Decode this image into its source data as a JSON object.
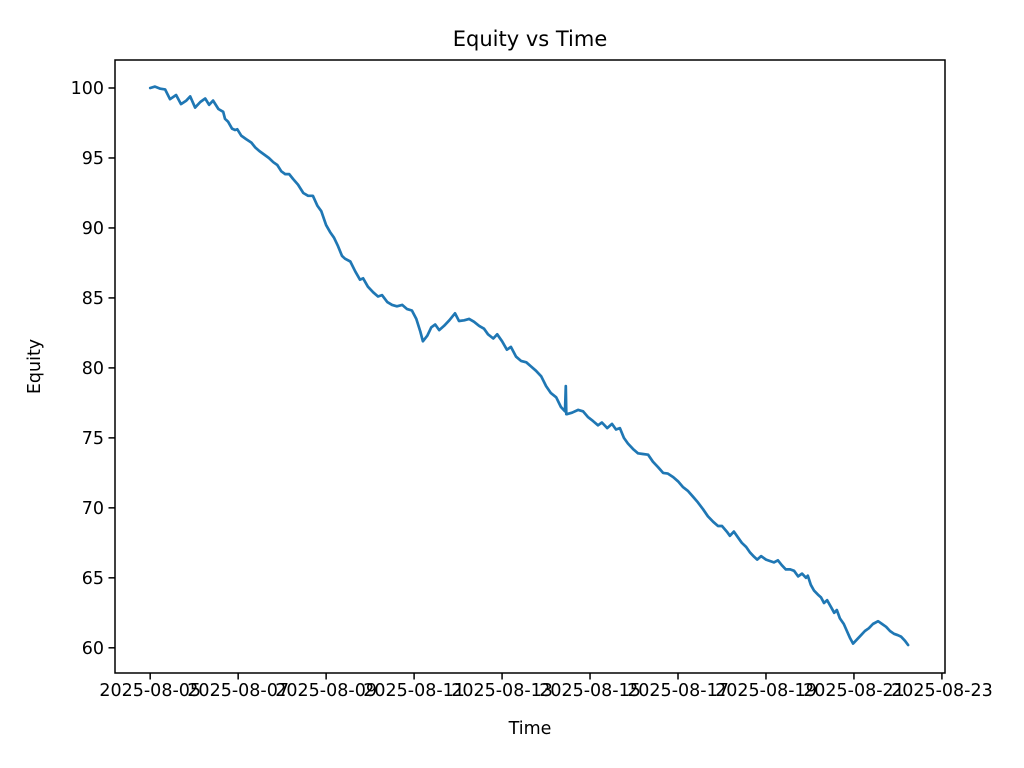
{
  "figure": {
    "background": "#ffffff"
  },
  "chart_data": {
    "type": "line",
    "title": "Equity vs Time",
    "xlabel": "Time",
    "ylabel": "Equity",
    "line_color": "#1f77b4",
    "axis_color": "#000000",
    "grid": false,
    "legend": null,
    "x_origin_date": "2025-08-05",
    "xlim_days": [
      -0.8,
      18.07
    ],
    "ylim": [
      58.2,
      102.0
    ],
    "x_ticks": [
      {
        "day": 0,
        "label": "2025-08-05"
      },
      {
        "day": 2,
        "label": "2025-08-07"
      },
      {
        "day": 4,
        "label": "2025-08-09"
      },
      {
        "day": 6,
        "label": "2025-08-11"
      },
      {
        "day": 8,
        "label": "2025-08-13"
      },
      {
        "day": 10,
        "label": "2025-08-15"
      },
      {
        "day": 12,
        "label": "2025-08-17"
      },
      {
        "day": 14,
        "label": "2025-08-19"
      },
      {
        "day": 16,
        "label": "2025-08-21"
      },
      {
        "day": 18,
        "label": "2025-08-23"
      }
    ],
    "y_ticks": [
      60,
      65,
      70,
      75,
      80,
      85,
      90,
      95,
      100
    ],
    "series": [
      {
        "name": "equity",
        "points": [
          [
            0.0,
            100.0
          ],
          [
            0.11,
            100.1
          ],
          [
            0.23,
            99.95
          ],
          [
            0.34,
            99.9
          ],
          [
            0.45,
            99.2
          ],
          [
            0.59,
            99.5
          ],
          [
            0.7,
            98.85
          ],
          [
            0.82,
            99.1
          ],
          [
            0.91,
            99.4
          ],
          [
            1.02,
            98.6
          ],
          [
            1.14,
            99.0
          ],
          [
            1.25,
            99.25
          ],
          [
            1.34,
            98.8
          ],
          [
            1.43,
            99.1
          ],
          [
            1.55,
            98.5
          ],
          [
            1.66,
            98.3
          ],
          [
            1.7,
            97.8
          ],
          [
            1.77,
            97.6
          ],
          [
            1.86,
            97.1
          ],
          [
            1.93,
            97.0
          ],
          [
            1.98,
            97.05
          ],
          [
            2.07,
            96.6
          ],
          [
            2.18,
            96.35
          ],
          [
            2.3,
            96.1
          ],
          [
            2.39,
            95.75
          ],
          [
            2.48,
            95.5
          ],
          [
            2.59,
            95.25
          ],
          [
            2.7,
            95.0
          ],
          [
            2.8,
            94.7
          ],
          [
            2.89,
            94.5
          ],
          [
            2.98,
            94.05
          ],
          [
            3.07,
            93.85
          ],
          [
            3.16,
            93.85
          ],
          [
            3.25,
            93.5
          ],
          [
            3.36,
            93.1
          ],
          [
            3.48,
            92.5
          ],
          [
            3.59,
            92.3
          ],
          [
            3.7,
            92.3
          ],
          [
            3.8,
            91.6
          ],
          [
            3.89,
            91.2
          ],
          [
            4.0,
            90.2
          ],
          [
            4.09,
            89.7
          ],
          [
            4.18,
            89.3
          ],
          [
            4.27,
            88.7
          ],
          [
            4.36,
            88.0
          ],
          [
            4.43,
            87.8
          ],
          [
            4.55,
            87.6
          ],
          [
            4.66,
            86.9
          ],
          [
            4.77,
            86.3
          ],
          [
            4.84,
            86.4
          ],
          [
            4.95,
            85.8
          ],
          [
            5.07,
            85.4
          ],
          [
            5.18,
            85.1
          ],
          [
            5.27,
            85.2
          ],
          [
            5.39,
            84.7
          ],
          [
            5.5,
            84.5
          ],
          [
            5.61,
            84.4
          ],
          [
            5.73,
            84.5
          ],
          [
            5.84,
            84.2
          ],
          [
            5.95,
            84.1
          ],
          [
            6.05,
            83.5
          ],
          [
            6.14,
            82.6
          ],
          [
            6.2,
            81.9
          ],
          [
            6.3,
            82.3
          ],
          [
            6.39,
            82.9
          ],
          [
            6.48,
            83.1
          ],
          [
            6.57,
            82.7
          ],
          [
            6.68,
            83.0
          ],
          [
            6.8,
            83.4
          ],
          [
            6.93,
            83.9
          ],
          [
            7.02,
            83.35
          ],
          [
            7.14,
            83.4
          ],
          [
            7.25,
            83.5
          ],
          [
            7.36,
            83.3
          ],
          [
            7.48,
            83.0
          ],
          [
            7.59,
            82.8
          ],
          [
            7.68,
            82.4
          ],
          [
            7.8,
            82.1
          ],
          [
            7.89,
            82.4
          ],
          [
            8.0,
            81.9
          ],
          [
            8.11,
            81.3
          ],
          [
            8.2,
            81.5
          ],
          [
            8.32,
            80.8
          ],
          [
            8.43,
            80.5
          ],
          [
            8.55,
            80.4
          ],
          [
            8.66,
            80.1
          ],
          [
            8.77,
            79.8
          ],
          [
            8.89,
            79.4
          ],
          [
            9.0,
            78.7
          ],
          [
            9.11,
            78.2
          ],
          [
            9.23,
            77.9
          ],
          [
            9.34,
            77.2
          ],
          [
            9.43,
            76.9
          ],
          [
            9.45,
            78.7
          ],
          [
            9.46,
            76.7
          ],
          [
            9.48,
            76.7
          ],
          [
            9.59,
            76.8
          ],
          [
            9.73,
            77.0
          ],
          [
            9.84,
            76.9
          ],
          [
            9.95,
            76.5
          ],
          [
            10.07,
            76.2
          ],
          [
            10.18,
            75.9
          ],
          [
            10.27,
            76.1
          ],
          [
            10.39,
            75.7
          ],
          [
            10.5,
            76.0
          ],
          [
            10.59,
            75.6
          ],
          [
            10.68,
            75.7
          ],
          [
            10.77,
            75.0
          ],
          [
            10.86,
            74.6
          ],
          [
            10.98,
            74.2
          ],
          [
            11.09,
            73.9
          ],
          [
            11.2,
            73.85
          ],
          [
            11.32,
            73.8
          ],
          [
            11.43,
            73.3
          ],
          [
            11.55,
            72.9
          ],
          [
            11.66,
            72.5
          ],
          [
            11.77,
            72.45
          ],
          [
            11.89,
            72.2
          ],
          [
            12.0,
            71.9
          ],
          [
            12.11,
            71.5
          ],
          [
            12.23,
            71.2
          ],
          [
            12.34,
            70.8
          ],
          [
            12.45,
            70.4
          ],
          [
            12.57,
            69.9
          ],
          [
            12.68,
            69.4
          ],
          [
            12.8,
            69.0
          ],
          [
            12.91,
            68.7
          ],
          [
            13.0,
            68.7
          ],
          [
            13.11,
            68.3
          ],
          [
            13.18,
            68.0
          ],
          [
            13.27,
            68.3
          ],
          [
            13.36,
            67.9
          ],
          [
            13.45,
            67.5
          ],
          [
            13.55,
            67.2
          ],
          [
            13.64,
            66.8
          ],
          [
            13.73,
            66.5
          ],
          [
            13.8,
            66.3
          ],
          [
            13.89,
            66.55
          ],
          [
            14.0,
            66.3
          ],
          [
            14.09,
            66.2
          ],
          [
            14.18,
            66.1
          ],
          [
            14.27,
            66.25
          ],
          [
            14.36,
            65.9
          ],
          [
            14.45,
            65.6
          ],
          [
            14.55,
            65.6
          ],
          [
            14.64,
            65.5
          ],
          [
            14.73,
            65.1
          ],
          [
            14.82,
            65.3
          ],
          [
            14.91,
            65.0
          ],
          [
            14.95,
            65.15
          ],
          [
            15.02,
            64.5
          ],
          [
            15.09,
            64.1
          ],
          [
            15.18,
            63.8
          ],
          [
            15.25,
            63.6
          ],
          [
            15.32,
            63.2
          ],
          [
            15.39,
            63.4
          ],
          [
            15.48,
            62.9
          ],
          [
            15.55,
            62.5
          ],
          [
            15.61,
            62.7
          ],
          [
            15.68,
            62.1
          ],
          [
            15.77,
            61.7
          ],
          [
            15.84,
            61.2
          ],
          [
            15.91,
            60.7
          ],
          [
            15.98,
            60.3
          ],
          [
            16.07,
            60.6
          ],
          [
            16.16,
            60.9
          ],
          [
            16.25,
            61.2
          ],
          [
            16.34,
            61.4
          ],
          [
            16.43,
            61.7
          ],
          [
            16.55,
            61.9
          ],
          [
            16.64,
            61.7
          ],
          [
            16.73,
            61.5
          ],
          [
            16.82,
            61.2
          ],
          [
            16.91,
            61.0
          ],
          [
            17.0,
            60.9
          ],
          [
            17.07,
            60.8
          ],
          [
            17.16,
            60.5
          ],
          [
            17.23,
            60.2
          ]
        ]
      }
    ]
  }
}
